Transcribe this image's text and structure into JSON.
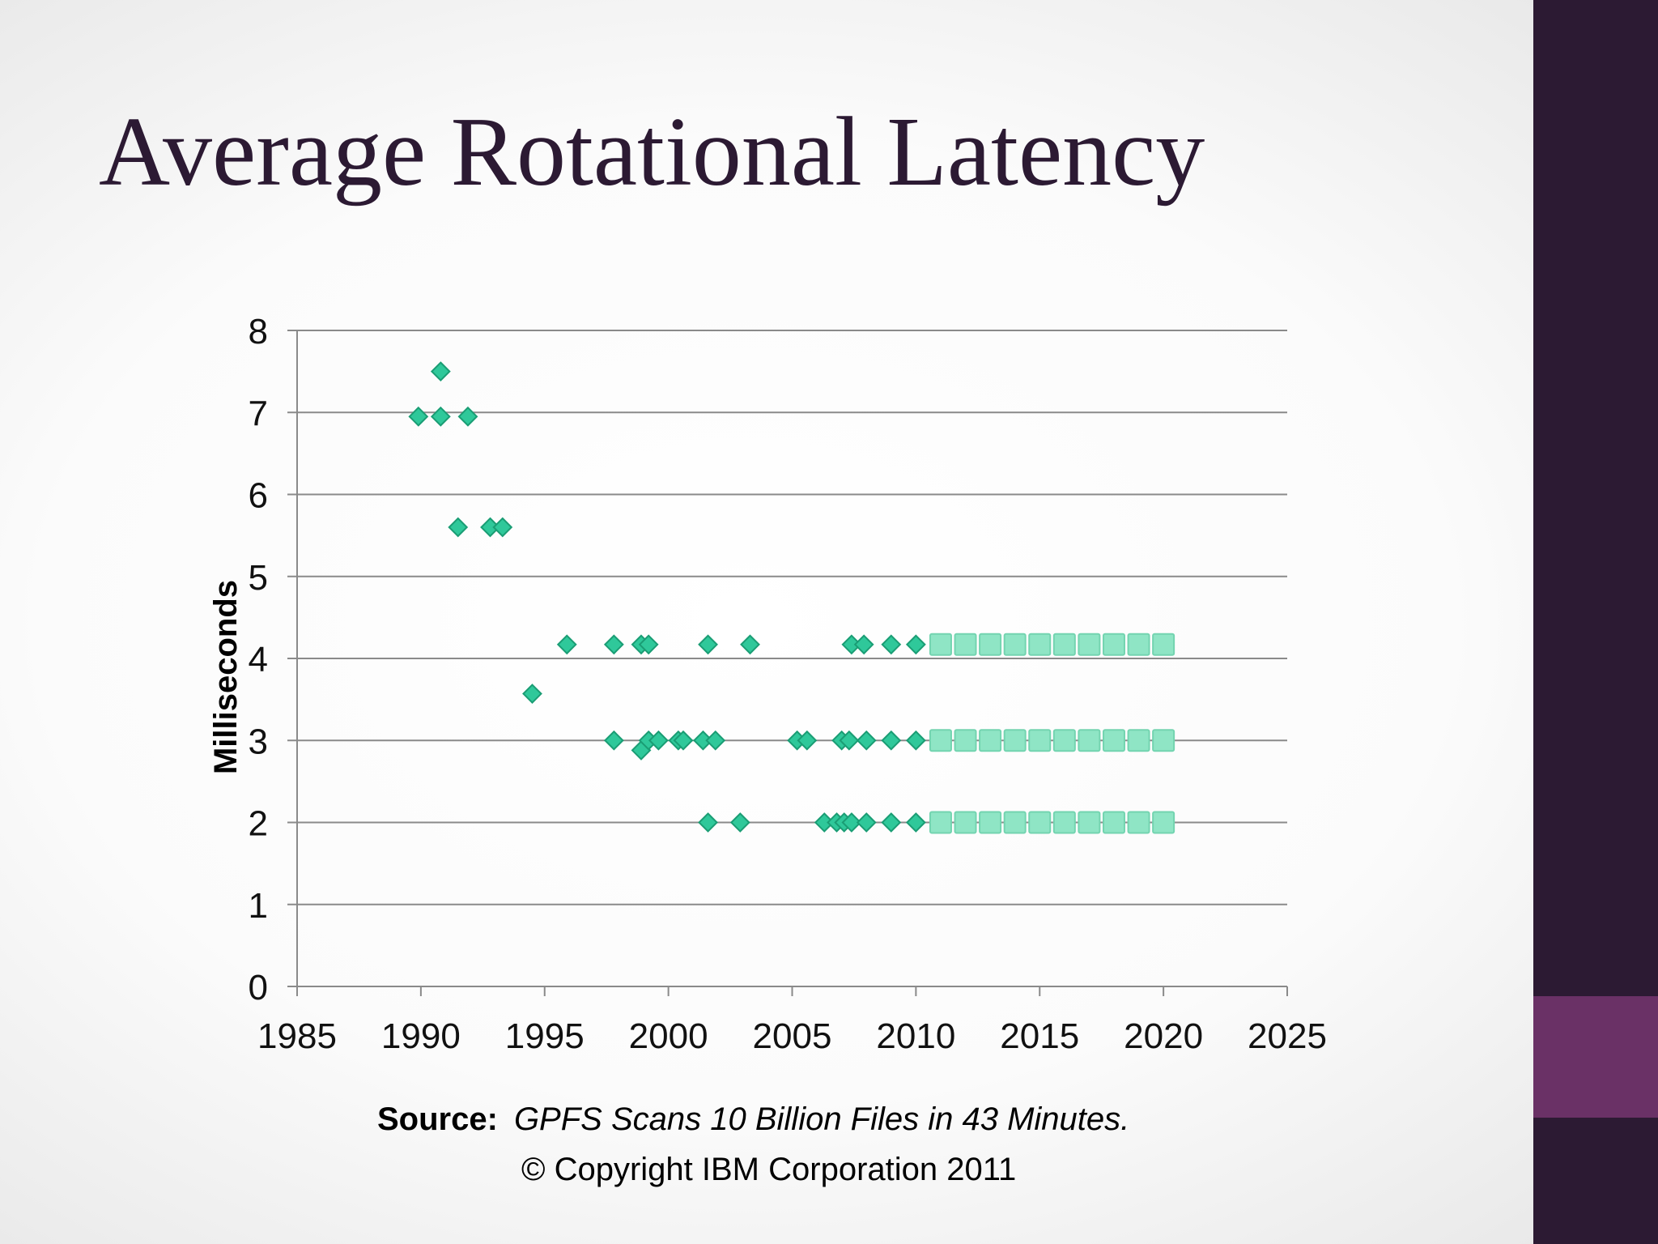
{
  "slide": {
    "title": "Average Rotational Latency",
    "source_label": "Source:",
    "source_text": "GPFS Scans 10 Billion Files in 43 Minutes.",
    "copyright": "© Copyright IBM Corporation 2011"
  },
  "colors": {
    "sidebar": "#2c1a33",
    "sidebar_accent": "#6a3166",
    "title_text": "#2c1a33",
    "diamond_fill": "#2fc89a",
    "diamond_stroke": "#1a9d74",
    "square_fill": "#8fe5c5",
    "square_stroke": "#73d4b0",
    "gridline": "#8a8a8a",
    "axis": "#8a8a8a"
  },
  "chart_data": {
    "type": "scatter",
    "title": "",
    "xlabel": "",
    "ylabel": "Milliseconds",
    "xlim": [
      1985,
      2025
    ],
    "ylim": [
      0,
      8
    ],
    "xticks": [
      1985,
      1990,
      1995,
      2000,
      2005,
      2010,
      2015,
      2020,
      2025
    ],
    "yticks": [
      0,
      1,
      2,
      3,
      4,
      5,
      6,
      7,
      8
    ],
    "grid": "horizontal",
    "legend": "none",
    "series": [
      {
        "marker": "diamond",
        "points": [
          [
            1989.9,
            6.95
          ],
          [
            1990.8,
            6.95
          ],
          [
            1991.9,
            6.95
          ],
          [
            1990.8,
            7.5
          ],
          [
            1991.5,
            5.6
          ],
          [
            1992.8,
            5.6
          ],
          [
            1993.3,
            5.6
          ],
          [
            1994.5,
            3.57
          ],
          [
            1995.9,
            4.17
          ],
          [
            1997.8,
            4.17
          ],
          [
            1998.9,
            4.17
          ],
          [
            1999.2,
            4.17
          ],
          [
            2001.6,
            4.17
          ],
          [
            2003.3,
            4.17
          ],
          [
            2007.4,
            4.17
          ],
          [
            2007.9,
            4.17
          ],
          [
            2009.0,
            4.17
          ],
          [
            2010.0,
            4.17
          ],
          [
            1997.8,
            3.0
          ],
          [
            1998.9,
            2.88
          ],
          [
            1999.2,
            3.0
          ],
          [
            1999.6,
            3.0
          ],
          [
            2000.4,
            3.0
          ],
          [
            2000.6,
            3.0
          ],
          [
            2001.4,
            3.0
          ],
          [
            2001.9,
            3.0
          ],
          [
            2005.2,
            3.0
          ],
          [
            2005.6,
            3.0
          ],
          [
            2007.0,
            3.0
          ],
          [
            2007.3,
            3.0
          ],
          [
            2008.0,
            3.0
          ],
          [
            2009.0,
            3.0
          ],
          [
            2010.0,
            3.0
          ],
          [
            2001.6,
            2.0
          ],
          [
            2002.9,
            2.0
          ],
          [
            2006.3,
            2.0
          ],
          [
            2006.8,
            2.0
          ],
          [
            2007.1,
            2.0
          ],
          [
            2007.4,
            2.0
          ],
          [
            2008.0,
            2.0
          ],
          [
            2009.0,
            2.0
          ],
          [
            2010.0,
            2.0
          ]
        ]
      },
      {
        "marker": "square",
        "points": [
          [
            2011,
            4.17
          ],
          [
            2012,
            4.17
          ],
          [
            2013,
            4.17
          ],
          [
            2014,
            4.17
          ],
          [
            2015,
            4.17
          ],
          [
            2016,
            4.17
          ],
          [
            2017,
            4.17
          ],
          [
            2018,
            4.17
          ],
          [
            2019,
            4.17
          ],
          [
            2020,
            4.17
          ],
          [
            2011,
            3.0
          ],
          [
            2012,
            3.0
          ],
          [
            2013,
            3.0
          ],
          [
            2014,
            3.0
          ],
          [
            2015,
            3.0
          ],
          [
            2016,
            3.0
          ],
          [
            2017,
            3.0
          ],
          [
            2018,
            3.0
          ],
          [
            2019,
            3.0
          ],
          [
            2020,
            3.0
          ],
          [
            2011,
            2.0
          ],
          [
            2012,
            2.0
          ],
          [
            2013,
            2.0
          ],
          [
            2014,
            2.0
          ],
          [
            2015,
            2.0
          ],
          [
            2016,
            2.0
          ],
          [
            2017,
            2.0
          ],
          [
            2018,
            2.0
          ],
          [
            2019,
            2.0
          ],
          [
            2020,
            2.0
          ]
        ]
      }
    ]
  }
}
